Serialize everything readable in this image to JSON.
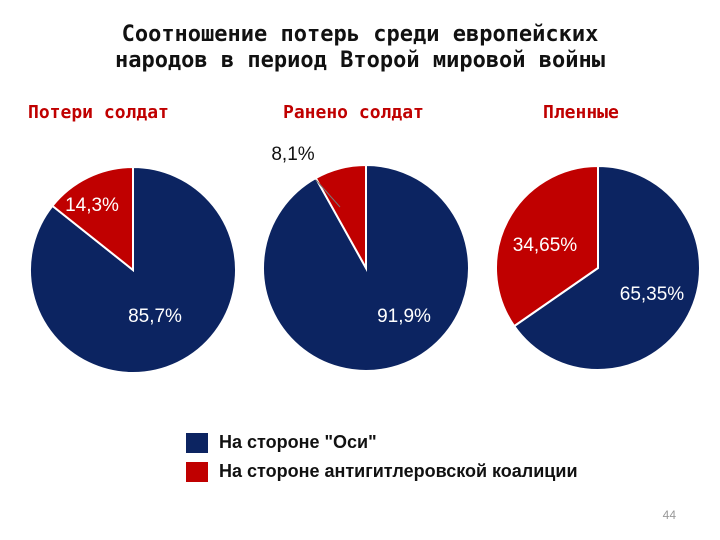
{
  "slide": {
    "title_line1": "Соотношение потерь среди европейских",
    "title_line2": "народов в период Второй мировой войны",
    "page_number": "44"
  },
  "chart_data": [
    {
      "type": "pie",
      "title": "Потери солдат",
      "series": [
        {
          "name": "На стороне \"Оси\"",
          "value": 85.7,
          "label": "85,7%"
        },
        {
          "name": "На стороне антигитлеровской коалиции",
          "value": 14.3,
          "label": "14,3%"
        }
      ]
    },
    {
      "type": "pie",
      "title": "Ранено солдат",
      "series": [
        {
          "name": "На стороне \"Оси\"",
          "value": 91.9,
          "label": "91,9%"
        },
        {
          "name": "На стороне антигитлеровской коалиции",
          "value": 8.1,
          "label": "8,1%"
        }
      ]
    },
    {
      "type": "pie",
      "title": "Пленные",
      "series": [
        {
          "name": "На стороне \"Оси\"",
          "value": 65.35,
          "label": "65,35%"
        },
        {
          "name": "На стороне антигитлеровской коалиции",
          "value": 34.65,
          "label": "34,65%"
        }
      ]
    }
  ],
  "legend": [
    {
      "label": "На стороне \"Оси\"",
      "color": "#0c2461"
    },
    {
      "label": "На стороне антигитлеровской коалиции",
      "color": "#c00000"
    }
  ],
  "colors": {
    "axis": "#0c2461",
    "allies": "#c00000"
  }
}
